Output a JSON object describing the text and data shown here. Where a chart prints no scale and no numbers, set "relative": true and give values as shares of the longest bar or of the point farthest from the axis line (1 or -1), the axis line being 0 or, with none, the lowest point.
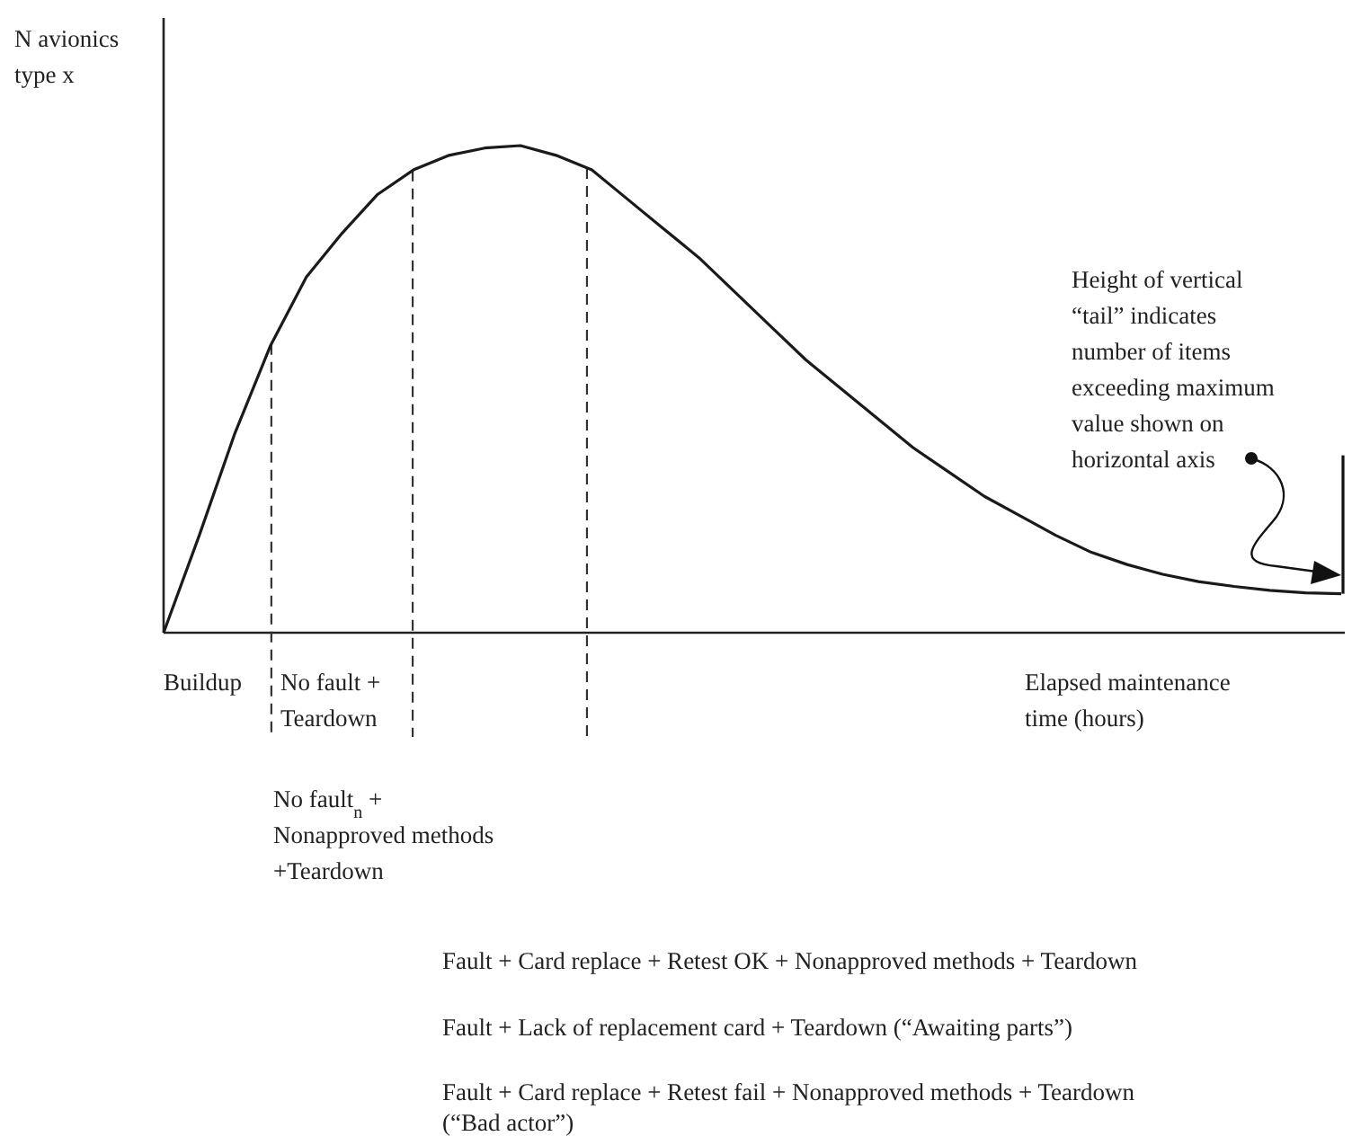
{
  "chart_data": {
    "type": "line",
    "relative": true,
    "ylabel": "N avionics\ntype x",
    "xlabel": "Elapsed maintenance\ntime (hours)",
    "categories": [
      null,
      null,
      null,
      null,
      null,
      null,
      null,
      null,
      null,
      null,
      null,
      null,
      null,
      null,
      null,
      null,
      null,
      null,
      null,
      null,
      null,
      null,
      null,
      null,
      null,
      null,
      null,
      null,
      null,
      null,
      null,
      null,
      null,
      null
    ],
    "series": [
      {
        "color": "#1a1a1a",
        "values": [
          0,
          0.2,
          0.41,
          0.59,
          0.73,
          0.82,
          0.9,
          0.95,
          0.98,
          0.995,
          1,
          0.98,
          0.95,
          0.89,
          0.83,
          0.77,
          0.7,
          0.63,
          0.56,
          0.5,
          0.44,
          0.38,
          0.33,
          0.28,
          0.24,
          0.2,
          0.165,
          0.14,
          0.12,
          0.105,
          0.095,
          0.087,
          0.082,
          0.08
        ]
      }
    ],
    "annotations": [
      "Height of vertical\n“tail” indicates\nnumber of items\nexceeding maximum\nvalue shown on\nhorizontal axis",
      "Buildup",
      "No fault +\nTeardown",
      "No fault$_{n}$ +\nNonapproved methods\n+Teardown",
      "Fault + Card replace + Retest OK + Nonapproved methods + Teardown",
      "Fault + Lack of replacement card + Teardown (“Awaiting parts”)",
      "Fault + Card replace + Retest fail + Nonapproved methods + Teardown\n(“Bad actor”)"
    ]
  }
}
